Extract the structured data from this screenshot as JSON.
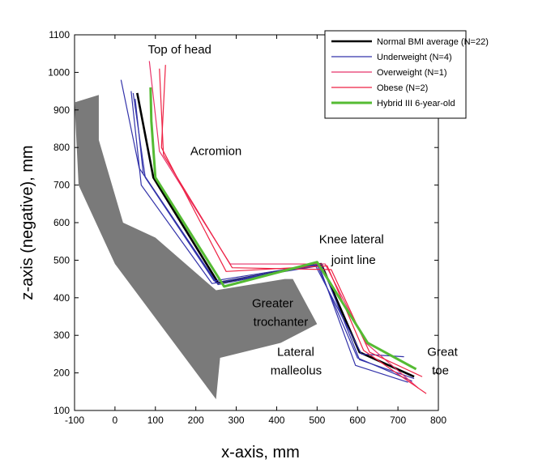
{
  "chart_data": {
    "type": "line",
    "xlabel": "x-axis,  mm",
    "ylabel": "z-axis (negative), mm",
    "xlim": [
      -100,
      800
    ],
    "ylim": [
      100,
      1100
    ],
    "xticks": [
      -100,
      0,
      100,
      200,
      300,
      400,
      500,
      600,
      700,
      800
    ],
    "yticks": [
      100,
      200,
      300,
      400,
      500,
      600,
      700,
      800,
      900,
      1000,
      1100
    ],
    "grid": false,
    "legend_position": "top-right",
    "colors": {
      "normal": "#000000",
      "underweight": "#3333aa",
      "overweight": "#e8336a",
      "obese": "#ee2244",
      "hybrid": "#55bb33",
      "seat": "#7a7a7a"
    },
    "series": [
      {
        "name": "Normal BMI average (N=22)",
        "key": "normal",
        "width": 2.6,
        "lines": [
          {
            "x": [
              55,
              95,
              255,
              510,
              605,
              740
            ],
            "y": [
              945,
              720,
              440,
              490,
              255,
              190
            ]
          }
        ]
      },
      {
        "name": "Underweight (N=4)",
        "key": "underweight",
        "width": 1.2,
        "lines": [
          {
            "x": [
              15,
              60,
              250,
              500,
              600,
              735
            ],
            "y": [
              980,
              745,
              440,
              488,
              240,
              178
            ]
          },
          {
            "x": [
              40,
              65,
              240,
              505,
              595,
              725
            ],
            "y": [
              950,
              700,
              438,
              485,
              220,
              175
            ]
          },
          {
            "x": [
              45,
              75,
              245,
              495,
              610,
              715
            ],
            "y": [
              945,
              720,
              445,
              488,
              250,
              243
            ]
          },
          {
            "x": [
              50,
              70,
              255,
              510,
              605,
              740
            ],
            "y": [
              930,
              730,
              435,
              490,
              235,
              185
            ]
          }
        ]
      },
      {
        "name": "Overweight (N=1)",
        "key": "overweight",
        "width": 1.2,
        "lines": [
          {
            "x": [
              85,
              110,
              285,
              520,
              620,
              750
            ],
            "y": [
              1030,
              790,
              490,
              490,
              280,
              160
            ]
          }
        ]
      },
      {
        "name": "Obese (N=2)",
        "key": "obese",
        "width": 1.2,
        "lines": [
          {
            "x": [
              110,
              120,
              290,
              535,
              630,
              760
            ],
            "y": [
              1010,
              780,
              480,
              475,
              255,
              190
            ]
          },
          {
            "x": [
              125,
              115,
              275,
              525,
              615,
              770
            ],
            "y": [
              1020,
              800,
              470,
              485,
              260,
              145
            ]
          }
        ]
      },
      {
        "name": "Hybrid III 6-year-old",
        "key": "hybrid",
        "width": 3,
        "lines": [
          {
            "x": [
              88,
              90,
              100,
              270,
              500,
              625,
              745
            ],
            "y": [
              960,
              870,
              720,
              430,
              495,
              280,
              210
            ]
          }
        ]
      }
    ],
    "seat_outline": {
      "x": [
        -100,
        -40,
        -40,
        20,
        20,
        100,
        250,
        420,
        440,
        500,
        410,
        260,
        250,
        0,
        -90
      ],
      "y": [
        920,
        940,
        820,
        600,
        600,
        560,
        420,
        450,
        450,
        330,
        280,
        240,
        130,
        490,
        700
      ]
    },
    "annotations": [
      {
        "text": "Top of head",
        "x": 160,
        "y": 1050
      },
      {
        "text": "Acromion",
        "x": 250,
        "y": 780
      },
      {
        "text": "Knee lateral",
        "x": 585,
        "y": 545
      },
      {
        "text": "joint line",
        "x": 590,
        "y": 490
      },
      {
        "text": "Greater",
        "x": 390,
        "y": 375
      },
      {
        "text": "trochanter",
        "x": 410,
        "y": 325
      },
      {
        "text": "Lateral",
        "x": 447,
        "y": 245
      },
      {
        "text": "malleolus",
        "x": 448,
        "y": 196
      },
      {
        "text": "Great",
        "x": 810,
        "y": 245
      },
      {
        "text": "toe",
        "x": 805,
        "y": 196
      }
    ]
  }
}
